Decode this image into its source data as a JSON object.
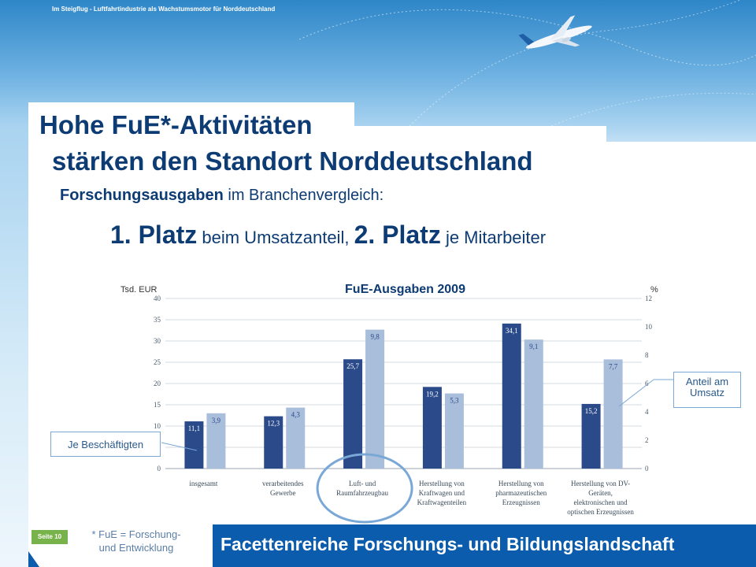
{
  "header": {
    "text": "Im Steigflug - Luftfahrtindustrie als Wachstumsmotor für Norddeutschland"
  },
  "title": {
    "line1": "Hohe FuE*-Aktivitäten",
    "line2": "stärken den Standort Norddeutschland"
  },
  "subtitle": {
    "bold": "Forschungsausgaben",
    "rest": " im Branchenvergleich:"
  },
  "headline": {
    "part1_big": "1. Platz",
    "part1_small": " beim Umsatzanteil, ",
    "part2_big": "2. Platz",
    "part2_small": " je Mitarbeiter"
  },
  "chart_data": {
    "type": "bar",
    "title": "FuE-Ausgaben 2009",
    "left_axis_label": "Tsd. EUR",
    "right_axis_label": "%",
    "left_ylim": [
      0,
      40
    ],
    "left_ticks": [
      "0",
      "5",
      "10",
      "15",
      "20",
      "25",
      "30",
      "35",
      "40"
    ],
    "right_ylim": [
      0,
      12
    ],
    "right_ticks": [
      "0",
      "2",
      "4",
      "6",
      "8",
      "10",
      "12"
    ],
    "grid": true,
    "categories": [
      [
        "insgesamt"
      ],
      [
        "verarbeitendes",
        "Gewerbe"
      ],
      [
        "Luft- und",
        "Raumfahrzeugbau"
      ],
      [
        "Herstellung von",
        "Kraftwagen und",
        "Kraftwagenteilen"
      ],
      [
        "Herstellung von",
        "pharmazeutischen",
        "Erzeugnissen"
      ],
      [
        "Herstellung von DV-",
        "Geräten,",
        "elektronischen und",
        "optischen Erzeugnissen"
      ]
    ],
    "series": [
      {
        "axis": "left",
        "values": [
          11.1,
          12.3,
          25.7,
          19.2,
          34.1,
          15.2
        ],
        "labels": [
          "11,1",
          "12,3",
          "25,7",
          "19,2",
          "34,1",
          "15,2"
        ],
        "color": "#2b4a8a"
      },
      {
        "axis": "right",
        "values": [
          3.9,
          4.3,
          9.8,
          5.3,
          9.1,
          7.7
        ],
        "labels": [
          "3,9",
          "4,3",
          "9,8",
          "5,3",
          "9,1",
          "7,7"
        ],
        "color": "#a9bedb"
      }
    ],
    "highlight_category_index": 2,
    "highlight_color": "#7aa8d6"
  },
  "callouts": {
    "left": "Je Beschäftigten",
    "right_line1": "Anteil am",
    "right_line2": "Umsatz"
  },
  "footnote": {
    "line1": "* FuE = Forschung-",
    "line2": "und Entwicklung"
  },
  "page_number": "Seite 10",
  "footer": {
    "text": "Facettenreiche Forschungs- und Bildungslandschaft"
  },
  "colors": {
    "primary": "#0d3b73",
    "footer_bar": "#0b5cad",
    "page_badge": "#78b24a",
    "sky": "#2e86c8"
  }
}
